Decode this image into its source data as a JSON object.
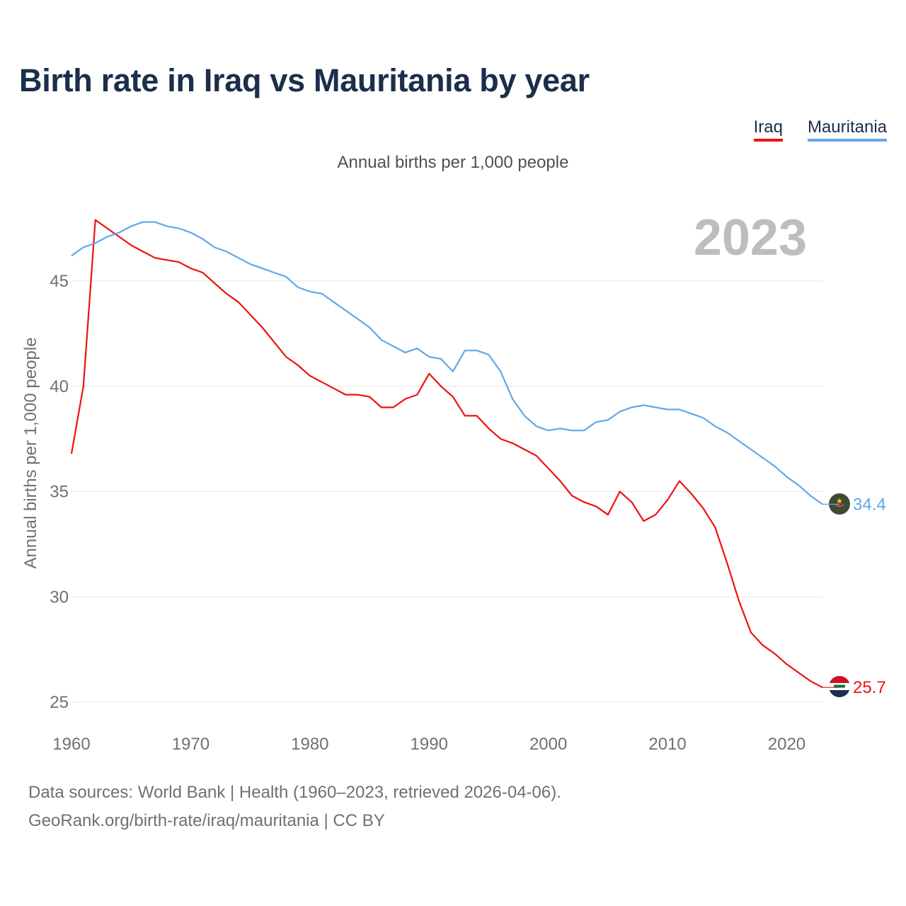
{
  "title": "Birth rate in Iraq vs Mauritania by year",
  "legend": {
    "iraq": "Iraq",
    "mauritania": "Mauritania"
  },
  "subtitle": "Annual births per 1,000 people",
  "source": {
    "line1": "Data sources: World Bank | Health (1960–2023, retrieved 2026-04-06).",
    "line2": "GeoRank.org/birth-rate/iraq/mauritania | CC BY"
  },
  "colors": {
    "iraq": "#ee1111",
    "mauritania": "#62a6e8",
    "grid": "#e6e6e6",
    "tick": "#707070",
    "year_label": "#bdbdbd"
  },
  "chart_data": {
    "type": "line",
    "title": "Birth rate in Iraq vs Mauritania by year",
    "ylabel": "Annual births per 1,000 people",
    "xlabel": "",
    "year_label": "2023",
    "xlim": [
      1960,
      2023
    ],
    "ylim": [
      24,
      49
    ],
    "x_ticks": [
      1960,
      1970,
      1980,
      1990,
      2000,
      2010,
      2020
    ],
    "y_ticks": [
      25,
      30,
      35,
      40,
      45
    ],
    "x": [
      1960,
      1961,
      1962,
      1963,
      1964,
      1965,
      1966,
      1967,
      1968,
      1969,
      1970,
      1971,
      1972,
      1973,
      1974,
      1975,
      1976,
      1977,
      1978,
      1979,
      1980,
      1981,
      1982,
      1983,
      1984,
      1985,
      1986,
      1987,
      1988,
      1989,
      1990,
      1991,
      1992,
      1993,
      1994,
      1995,
      1996,
      1997,
      1998,
      1999,
      2000,
      2001,
      2002,
      2003,
      2004,
      2005,
      2006,
      2007,
      2008,
      2009,
      2010,
      2011,
      2012,
      2013,
      2014,
      2015,
      2016,
      2017,
      2018,
      2019,
      2020,
      2021,
      2022,
      2023
    ],
    "series": [
      {
        "name": "Iraq",
        "key": "iraq",
        "end_label": "25.7",
        "values": [
          36.8,
          40.0,
          47.9,
          47.5,
          47.1,
          46.7,
          46.4,
          46.1,
          46.0,
          45.9,
          45.6,
          45.4,
          44.9,
          44.4,
          44.0,
          43.4,
          42.8,
          42.1,
          41.4,
          41.0,
          40.5,
          40.2,
          39.9,
          39.6,
          39.6,
          39.5,
          39.0,
          39.0,
          39.4,
          39.6,
          40.6,
          40.0,
          39.5,
          38.6,
          38.6,
          38.0,
          37.5,
          37.3,
          37.0,
          36.7,
          36.1,
          35.5,
          34.8,
          34.5,
          34.3,
          33.9,
          35.0,
          34.5,
          33.6,
          33.9,
          34.6,
          35.5,
          34.9,
          34.2,
          33.3,
          31.6,
          29.8,
          28.3,
          27.7,
          27.3,
          26.8,
          26.4,
          26.0,
          25.7
        ]
      },
      {
        "name": "Mauritania",
        "key": "mauritania",
        "end_label": "34.4",
        "values": [
          46.2,
          46.6,
          46.8,
          47.1,
          47.3,
          47.6,
          47.8,
          47.8,
          47.6,
          47.5,
          47.3,
          47.0,
          46.6,
          46.4,
          46.1,
          45.8,
          45.6,
          45.4,
          45.2,
          44.7,
          44.5,
          44.4,
          44.0,
          43.6,
          43.2,
          42.8,
          42.2,
          41.9,
          41.6,
          41.8,
          41.4,
          41.3,
          40.7,
          41.7,
          41.7,
          41.5,
          40.7,
          39.4,
          38.6,
          38.1,
          37.9,
          38.0,
          37.9,
          37.9,
          38.3,
          38.4,
          38.8,
          39.0,
          39.1,
          39.0,
          38.9,
          38.9,
          38.7,
          38.5,
          38.1,
          37.8,
          37.4,
          37.0,
          36.6,
          36.2,
          35.7,
          35.3,
          34.8,
          34.4
        ]
      }
    ]
  }
}
